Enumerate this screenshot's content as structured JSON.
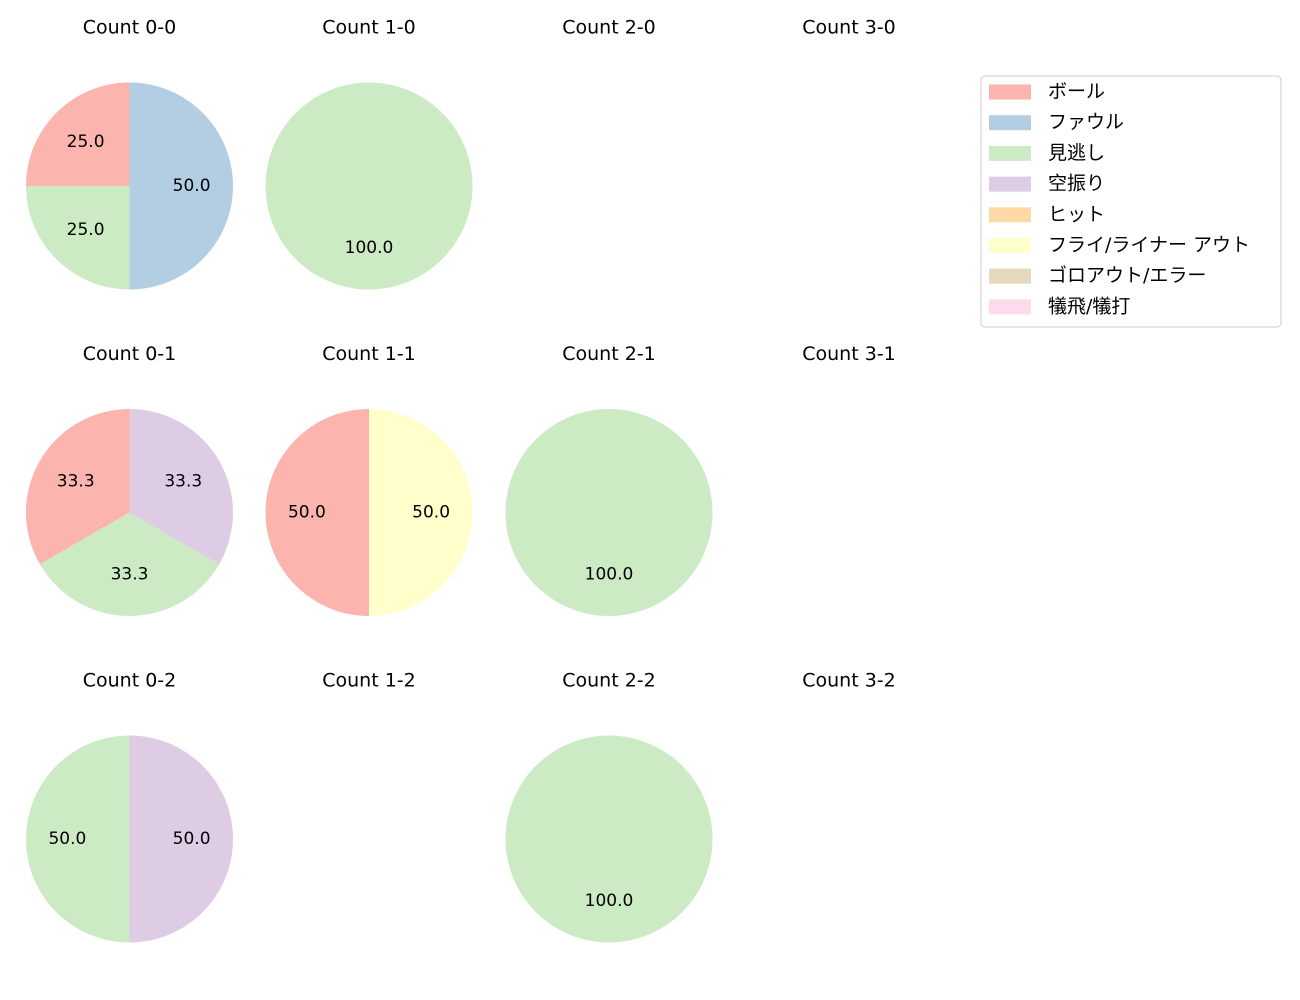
{
  "legend": {
    "position": "upper-right",
    "entries": [
      {
        "label": "ボール",
        "color": "#fbb4ae"
      },
      {
        "label": "ファウル",
        "color": "#b3cde3"
      },
      {
        "label": "見逃し",
        "color": "#ccebc5"
      },
      {
        "label": "空振り",
        "color": "#decbe4"
      },
      {
        "label": "ヒット",
        "color": "#fed9a6"
      },
      {
        "label": "フライ/ライナー アウト",
        "color": "#ffffcc"
      },
      {
        "label": "ゴロアウト/エラー",
        "color": "#e5d8bd"
      },
      {
        "label": "犠飛/犠打",
        "color": "#fddaec"
      }
    ]
  },
  "chart_data": [
    {
      "type": "pie",
      "title": "Count 0-0",
      "slices": [
        {
          "category": "ボール",
          "value": 25.0
        },
        {
          "category": "見逃し",
          "value": 25.0
        },
        {
          "category": "ファウル",
          "value": 50.0
        }
      ]
    },
    {
      "type": "pie",
      "title": "Count 1-0",
      "slices": [
        {
          "category": "見逃し",
          "value": 100.0
        }
      ]
    },
    {
      "type": "pie",
      "title": "Count 2-0",
      "slices": []
    },
    {
      "type": "pie",
      "title": "Count 3-0",
      "slices": []
    },
    {
      "type": "pie",
      "title": "Count 0-1",
      "slices": [
        {
          "category": "ボール",
          "value": 33.3
        },
        {
          "category": "見逃し",
          "value": 33.3
        },
        {
          "category": "空振り",
          "value": 33.3
        }
      ]
    },
    {
      "type": "pie",
      "title": "Count 1-1",
      "slices": [
        {
          "category": "ボール",
          "value": 50.0
        },
        {
          "category": "フライ/ライナー アウト",
          "value": 50.0
        }
      ]
    },
    {
      "type": "pie",
      "title": "Count 2-1",
      "slices": [
        {
          "category": "見逃し",
          "value": 100.0
        }
      ]
    },
    {
      "type": "pie",
      "title": "Count 3-1",
      "slices": []
    },
    {
      "type": "pie",
      "title": "Count 0-2",
      "slices": [
        {
          "category": "見逃し",
          "value": 50.0
        },
        {
          "category": "空振り",
          "value": 50.0
        }
      ]
    },
    {
      "type": "pie",
      "title": "Count 1-2",
      "slices": []
    },
    {
      "type": "pie",
      "title": "Count 2-2",
      "slices": [
        {
          "category": "見逃し",
          "value": 100.0
        }
      ]
    },
    {
      "type": "pie",
      "title": "Count 3-2",
      "slices": []
    }
  ]
}
